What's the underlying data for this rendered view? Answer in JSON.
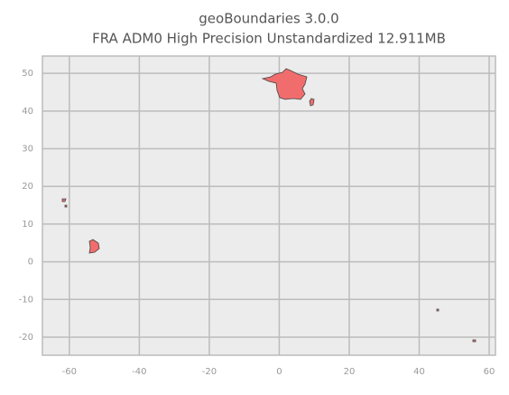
{
  "chart_data": {
    "type": "map",
    "title": "geoBoundaries 3.0.0",
    "subtitle": "FRA ADM0 High Precision Unstandardized 12.911MB",
    "xlim": [
      -67.7,
      61.8
    ],
    "ylim": [
      -24.8,
      54.6
    ],
    "xticks": [
      -60,
      -40,
      -20,
      0,
      20,
      40,
      60
    ],
    "yticks": [
      -20,
      -10,
      0,
      10,
      20,
      30,
      40,
      50
    ],
    "grid": true
  }
}
